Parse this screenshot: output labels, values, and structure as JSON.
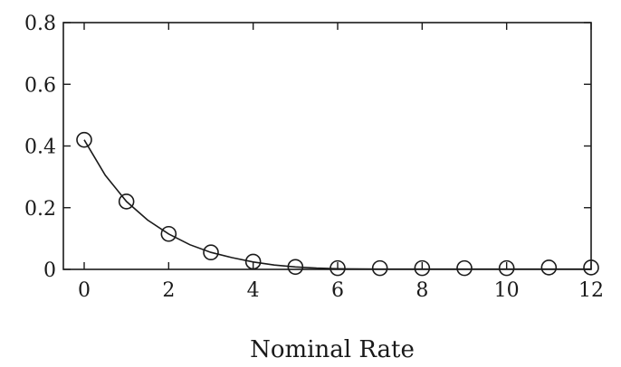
{
  "chart_data": {
    "type": "scatter",
    "title": "",
    "xlabel": "Nominal Rate",
    "ylabel": "",
    "xlim": [
      0,
      12
    ],
    "ylim": [
      0,
      0.8
    ],
    "x_ticks": [
      0,
      2,
      4,
      6,
      8,
      10,
      12
    ],
    "x_tick_labels": [
      "0",
      "2",
      "4",
      "6",
      "8",
      "10",
      "12"
    ],
    "y_ticks": [
      0,
      0.2,
      0.4,
      0.6,
      0.8
    ],
    "y_tick_labels": [
      "0",
      "0.2",
      "0.4",
      "0.6",
      "0.8"
    ],
    "grid": false,
    "legend": "none",
    "series": [
      {
        "marker": "open-circle",
        "x": [
          0,
          1,
          2,
          3,
          4,
          5,
          6,
          7,
          8,
          9,
          10,
          11,
          12
        ],
        "y": [
          0.42,
          0.22,
          0.115,
          0.055,
          0.025,
          0.008,
          0.004,
          0.004,
          0.004,
          0.004,
          0.004,
          0.006,
          0.006
        ]
      }
    ],
    "fit_curve": {
      "style": "solid-line",
      "x": [
        0,
        0.5,
        1,
        1.5,
        2,
        2.5,
        3,
        3.5,
        4,
        4.5,
        5,
        5.5,
        6,
        7,
        8,
        9,
        10,
        11,
        12
      ],
      "y": [
        0.42,
        0.305,
        0.22,
        0.16,
        0.115,
        0.08,
        0.055,
        0.038,
        0.024,
        0.014,
        0.008,
        0.004,
        0.002,
        0.001,
        0.001,
        0.001,
        0.001,
        0.001,
        0.001
      ]
    }
  }
}
